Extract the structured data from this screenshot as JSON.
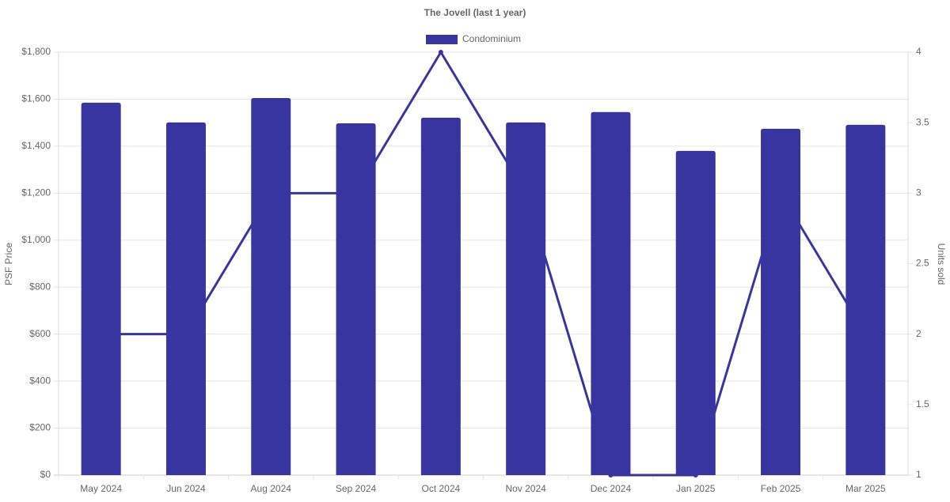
{
  "chart_data": {
    "type": "bar-line",
    "title": "The Jovell (last 1 year)",
    "ylabel": "PSF Price",
    "y2label": "Units sold",
    "categories": [
      "May 2024",
      "Jun 2024",
      "Aug 2024",
      "Sep 2024",
      "Oct 2024",
      "Nov 2024",
      "Dec 2024",
      "Jan 2025",
      "Feb 2025",
      "Mar 2025"
    ],
    "series": [
      {
        "name": "Condominium",
        "type": "bar",
        "color": "#3835a0",
        "values": [
          1585,
          1501,
          1605,
          1497,
          1521,
          1501,
          1545,
          1380,
          1474,
          1491
        ]
      },
      {
        "type": "line",
        "axis": "y2",
        "color": "#3835a0",
        "values": [
          2,
          2,
          3,
          3,
          4,
          3,
          1,
          1,
          3,
          2
        ]
      }
    ],
    "ylim": [
      0,
      1800
    ],
    "yticks": [
      {
        "value": 0,
        "label": "$0"
      },
      {
        "value": 200,
        "label": "$200"
      },
      {
        "value": 400,
        "label": "$400"
      },
      {
        "value": 600,
        "label": "$600"
      },
      {
        "value": 800,
        "label": "$800"
      },
      {
        "value": 1000,
        "label": "$1,000"
      },
      {
        "value": 1200,
        "label": "$1,200"
      },
      {
        "value": 1400,
        "label": "$1,400"
      },
      {
        "value": 1600,
        "label": "$1,600"
      },
      {
        "value": 1800,
        "label": "$1,800"
      }
    ],
    "y2lim": [
      1,
      4
    ],
    "y2ticks": [
      1,
      1.5,
      2,
      2.5,
      3,
      3.5,
      4
    ],
    "grid": true,
    "legend": "top"
  }
}
